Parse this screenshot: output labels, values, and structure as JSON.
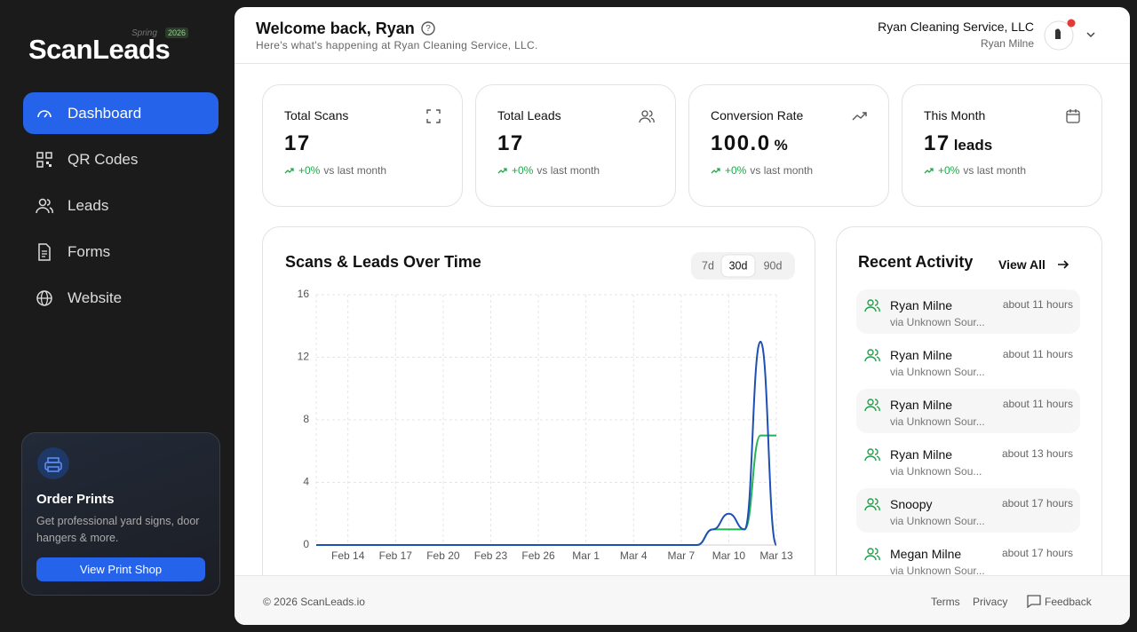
{
  "sidebar": {
    "brand": "ScanLeads",
    "season": "Spring",
    "year": "2026",
    "nav": [
      "Dashboard",
      "QR Codes",
      "Leads",
      "Forms",
      "Website"
    ],
    "active_nav": "Dashboard",
    "promo": {
      "title": "Order Prints",
      "text": "Get professional yard signs, door hangers & more.",
      "button": "View Print Shop"
    }
  },
  "header": {
    "title": "Welcome back, Ryan",
    "subtitle": "Here's what's happening at Ryan Cleaning Service, LLC.",
    "company": "Ryan Cleaning Service, LLC",
    "user": "Ryan Milne"
  },
  "stats": [
    {
      "label": "Total Scans",
      "value": "17",
      "change": "+0%",
      "note": "vs last month"
    },
    {
      "label": "Total Leads",
      "value": "17",
      "change": "+0%",
      "note": "vs last month"
    },
    {
      "label": "Conversion Rate",
      "value": "100.0",
      "unit": "%",
      "change": "+0%",
      "note": "vs last month"
    },
    {
      "label": "This Month",
      "value": "17",
      "unit": "leads",
      "change": "+0%",
      "note": "vs last month"
    }
  ],
  "chart_data": {
    "type": "line",
    "title": "Scans & Leads Over Time",
    "ranges": [
      "7d",
      "30d",
      "90d"
    ],
    "active_range": "30d",
    "categories": [
      null,
      null,
      "Feb 14",
      null,
      null,
      "Feb 17",
      null,
      null,
      "Feb 20",
      null,
      null,
      "Feb 23",
      null,
      null,
      "Feb 26",
      null,
      null,
      "Mar 1",
      null,
      null,
      "Mar 4",
      null,
      null,
      "Mar 7",
      null,
      null,
      "Mar 10",
      null,
      null,
      "Mar 13"
    ],
    "series": [
      {
        "color": "#1e4fb4",
        "values": [
          0,
          0,
          0,
          0,
          0,
          0,
          0,
          0,
          0,
          0,
          0,
          0,
          0,
          0,
          0,
          0,
          0,
          0,
          0,
          0,
          0,
          0,
          0,
          0,
          0,
          1,
          2,
          1,
          13,
          0
        ]
      },
      {
        "color": "#22b455",
        "values": [
          0,
          0,
          0,
          0,
          0,
          0,
          0,
          0,
          0,
          0,
          0,
          0,
          0,
          0,
          0,
          0,
          0,
          0,
          0,
          0,
          0,
          0,
          0,
          0,
          0,
          1,
          1,
          1,
          7,
          7
        ]
      }
    ],
    "ylim": [
      0,
      16
    ],
    "yticks": [
      0,
      4,
      8,
      12,
      16
    ],
    "grid": true
  },
  "activity": {
    "title": "Recent Activity",
    "link": "View All",
    "items": [
      {
        "name": "Ryan Milne",
        "source": "via Unknown Sour...",
        "time": "about 11 hours"
      },
      {
        "name": "Ryan Milne",
        "source": "via Unknown Sour...",
        "time": "about 11 hours"
      },
      {
        "name": "Ryan Milne",
        "source": "via Unknown Sour...",
        "time": "about 11 hours"
      },
      {
        "name": "Ryan Milne",
        "source": "via Unknown Sou...",
        "time": "about 13 hours"
      },
      {
        "name": "Snoopy",
        "source": "via Unknown Sour...",
        "time": "about 17 hours"
      },
      {
        "name": "Megan Milne",
        "source": "via Unknown Sour...",
        "time": "about 17 hours"
      }
    ]
  },
  "footer": {
    "copyright": "© 2026 ScanLeads.io",
    "links": [
      "Terms",
      "Privacy",
      "Feedback"
    ]
  }
}
